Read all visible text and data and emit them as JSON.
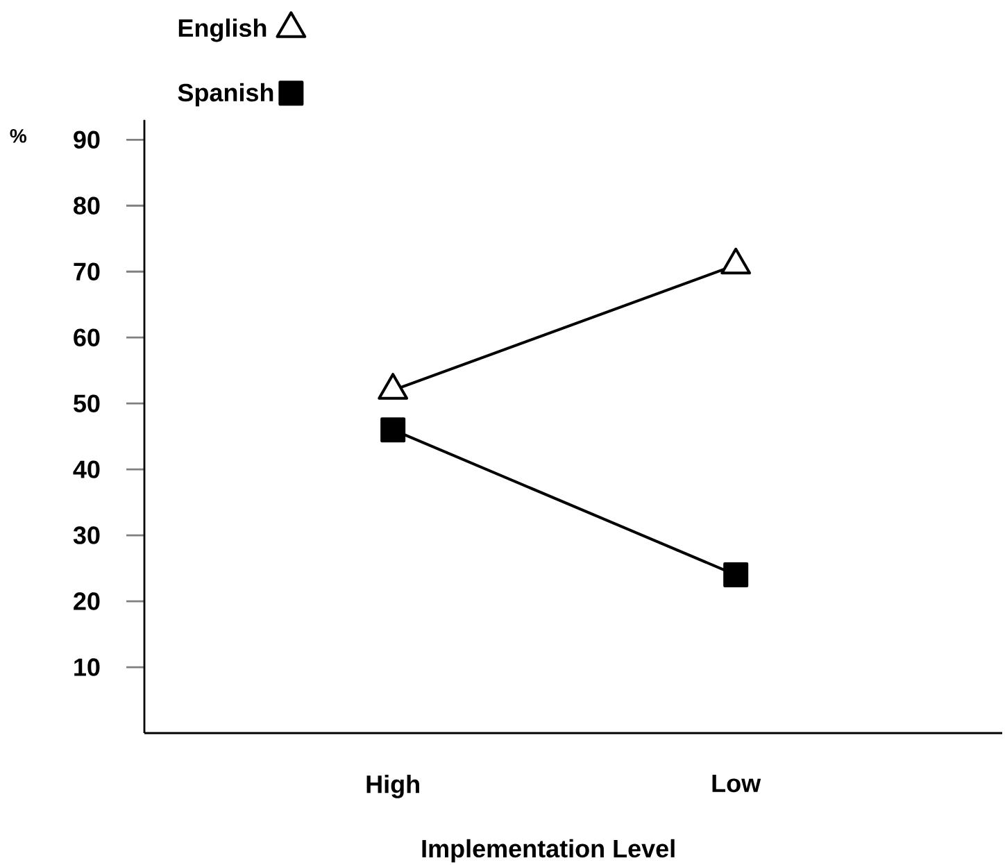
{
  "chart_data": {
    "type": "line",
    "xlabel": "Implementation Level",
    "ylabel": "%",
    "categories": [
      "High",
      "Low"
    ],
    "series": [
      {
        "name": "English",
        "color": "#000000",
        "marker": "triangle",
        "values": [
          52,
          71
        ]
      },
      {
        "name": "Spanish",
        "color": "#000000",
        "marker": "square",
        "values": [
          46,
          24
        ]
      }
    ],
    "ylim": [
      0,
      93
    ],
    "yticks": [
      10,
      20,
      30,
      40,
      50,
      60,
      70,
      80,
      90
    ],
    "legend": "top left"
  }
}
